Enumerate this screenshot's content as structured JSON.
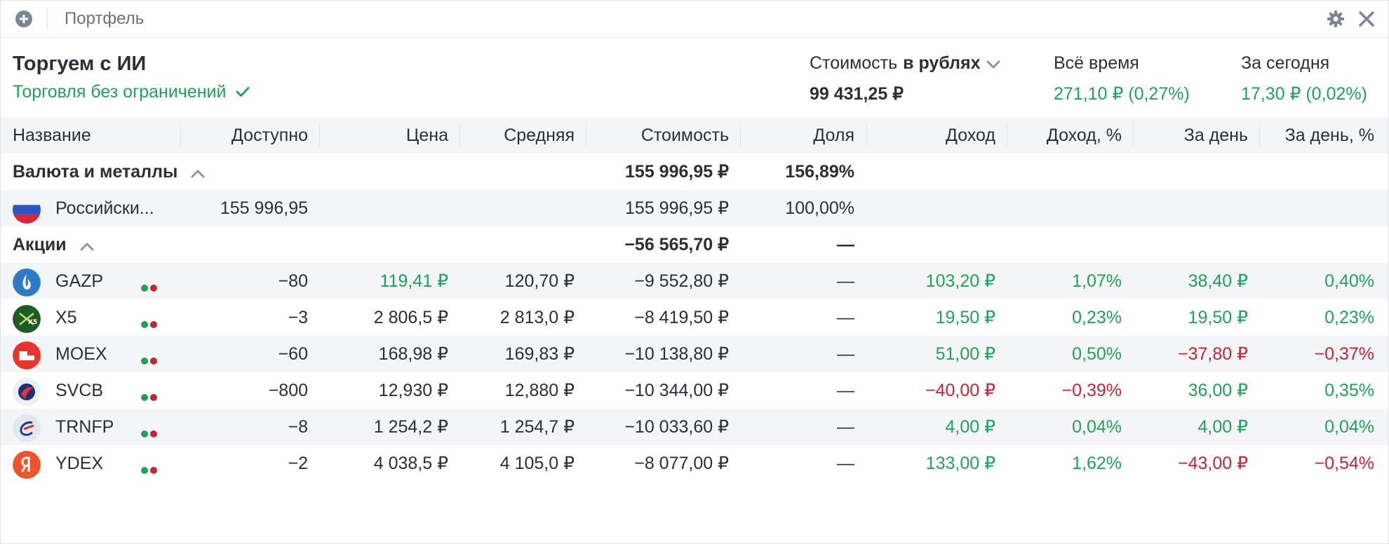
{
  "window": {
    "title": "Портфель"
  },
  "account": {
    "name": "Торгуем с ИИ",
    "status": "Торговля без ограничений"
  },
  "stats": {
    "value_label_prefix": "Стоимость",
    "value_label_currency": "в рублях",
    "value": "99 431,25 ₽",
    "alltime_label": "Всё время",
    "alltime_value": "271,10 ₽ (0,27%)",
    "today_label": "За сегодня",
    "today_value": "17,30 ₽ (0,02%)"
  },
  "columns": [
    "Название",
    "Доступно",
    "Цена",
    "Средняя",
    "Стоимость",
    "Доля",
    "Доход",
    "Доход, %",
    "За день",
    "За день, %"
  ],
  "groups": {
    "currency": {
      "name": "Валюта и металлы",
      "cost": "155 996,95 ₽",
      "share": "156,89%"
    },
    "rub": {
      "name": "Российски...",
      "available": "155 996,95",
      "cost": "155 996,95 ₽",
      "share": "100,00%"
    },
    "stocks": {
      "name": "Акции",
      "cost": "−56 565,70 ₽",
      "share": "—"
    }
  },
  "rows": [
    {
      "ticker": "GAZP",
      "available": "−80",
      "price": "119,41 ₽",
      "avg": "120,70 ₽",
      "cost": "−9 552,80 ₽",
      "share": "—",
      "income": "103,20 ₽",
      "income_pct": "1,07%",
      "day": "38,40 ₽",
      "day_pct": "0,40%"
    },
    {
      "ticker": "X5",
      "available": "−3",
      "price": "2 806,5 ₽",
      "avg": "2 813,0 ₽",
      "cost": "−8 419,50 ₽",
      "share": "—",
      "income": "19,50 ₽",
      "income_pct": "0,23%",
      "day": "19,50 ₽",
      "day_pct": "0,23%"
    },
    {
      "ticker": "MOEX",
      "available": "−60",
      "price": "168,98 ₽",
      "avg": "169,83 ₽",
      "cost": "−10 138,80 ₽",
      "share": "—",
      "income": "51,00 ₽",
      "income_pct": "0,50%",
      "day": "−37,80 ₽",
      "day_pct": "−0,37%"
    },
    {
      "ticker": "SVCB",
      "available": "−800",
      "price": "12,930 ₽",
      "avg": "12,880 ₽",
      "cost": "−10 344,00 ₽",
      "share": "—",
      "income": "−40,00 ₽",
      "income_pct": "−0,39%",
      "day": "36,00 ₽",
      "day_pct": "0,35%"
    },
    {
      "ticker": "TRNFP",
      "available": "−8",
      "price": "1 254,2 ₽",
      "avg": "1 254,7 ₽",
      "cost": "−10 033,60 ₽",
      "share": "—",
      "income": "4,00 ₽",
      "income_pct": "0,04%",
      "day": "4,00 ₽",
      "day_pct": "0,04%"
    },
    {
      "ticker": "YDEX",
      "available": "−2",
      "price": "4 038,5 ₽",
      "avg": "4 105,0 ₽",
      "cost": "−8 077,00 ₽",
      "share": "—",
      "income": "133,00 ₽",
      "income_pct": "1,62%",
      "day": "−43,00 ₽",
      "day_pct": "−0,54%"
    }
  ],
  "colors": {
    "positive": "#22a05a",
    "negative": "#c2243a",
    "text": "#2b2f36",
    "row_alt": "#f3f5f7"
  },
  "icons": [
    "add-icon",
    "gear-icon",
    "close-icon",
    "checkmark-icon",
    "chevron-down-icon",
    "chevron-up-icon",
    "russia-flag-icon",
    "gazprom-logo-icon",
    "x5-logo-icon",
    "moex-logo-icon",
    "svcb-logo-icon",
    "transneft-logo-icon",
    "yandex-logo-icon",
    "market-status-icon"
  ]
}
